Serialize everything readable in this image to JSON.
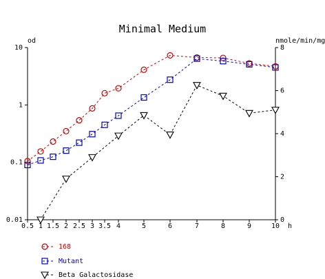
{
  "chart_data": {
    "type": "line",
    "title": "Minimal Medium",
    "y_left_label": "od",
    "y_right_label": "nmole/min/mg",
    "x_unit_label": "h",
    "x_scale": "piecewise",
    "x_ticks": [
      "0.5",
      "1",
      "1.5",
      "2",
      "2.5",
      "3",
      "3.5",
      "4",
      "5",
      "6",
      "7",
      "8",
      "9",
      "10"
    ],
    "x_tick_values": [
      0.5,
      1,
      1.5,
      2,
      2.5,
      3,
      3.5,
      4,
      5,
      6,
      7,
      8,
      9,
      10
    ],
    "y_left_scale": "log",
    "y_left_range": [
      0.01,
      10
    ],
    "y_left_ticks": [
      "0.01",
      "0.1",
      "1",
      "10"
    ],
    "y_left_tick_values": [
      0.01,
      0.1,
      1,
      10
    ],
    "y_right_range": [
      0,
      8
    ],
    "y_right_ticks": [
      "0",
      "2",
      "4",
      "6",
      "8"
    ],
    "y_right_tick_values": [
      0,
      2,
      4,
      6,
      8
    ],
    "grid": false,
    "legend_position": "bottom-left",
    "series": [
      {
        "name": "168",
        "axis": "left",
        "color": "#cc0000",
        "marker": "circle",
        "x": [
          0.5,
          1,
          1.5,
          2,
          2.5,
          3,
          3.5,
          4,
          5,
          6,
          7,
          8,
          9,
          10
        ],
        "values": [
          0.105,
          0.155,
          0.23,
          0.35,
          0.54,
          0.87,
          1.6,
          1.95,
          4.1,
          7.3,
          6.7,
          6.6,
          5.3,
          4.7
        ]
      },
      {
        "name": "Mutant",
        "axis": "left",
        "color": "#0000cc",
        "marker": "square",
        "x": [
          0.5,
          1,
          1.5,
          2,
          2.5,
          3,
          3.5,
          4,
          5,
          6,
          7,
          8,
          9,
          10
        ],
        "values": [
          0.09,
          0.108,
          0.125,
          0.16,
          0.22,
          0.31,
          0.45,
          0.65,
          1.35,
          2.75,
          6.4,
          5.8,
          5.1,
          4.5
        ]
      },
      {
        "name": "Beta Galactosidase",
        "axis": "right",
        "color": "#000000",
        "marker": "triangle-down",
        "x": [
          1,
          2,
          3,
          4,
          5,
          6,
          7,
          8,
          9,
          10
        ],
        "values": [
          0,
          1.9,
          2.9,
          3.9,
          4.85,
          3.95,
          6.25,
          5.75,
          4.95,
          5.1
        ]
      }
    ]
  }
}
